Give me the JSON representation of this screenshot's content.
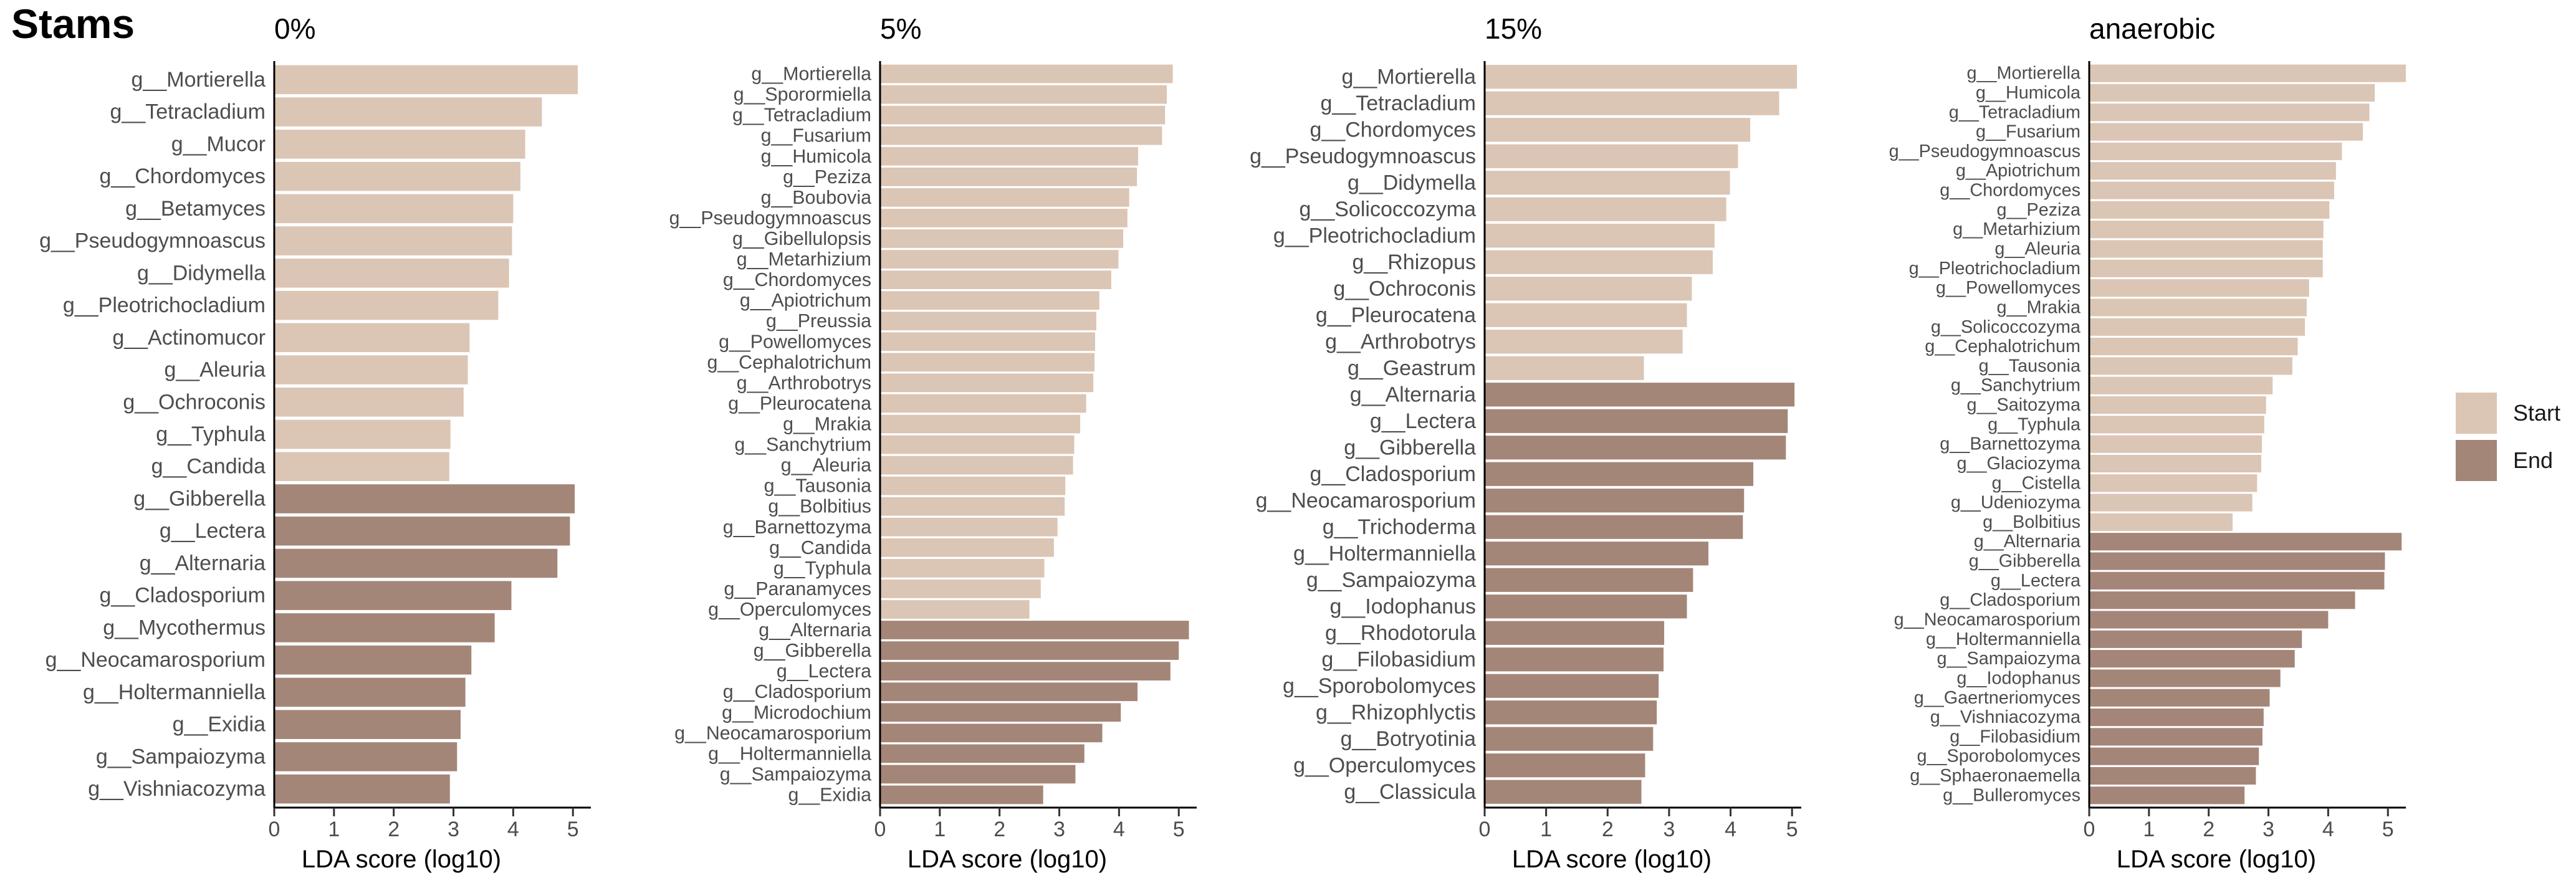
{
  "figure": {
    "title": "Stams",
    "legend": {
      "items": [
        {
          "label": "Start",
          "color": "#dbc5b4"
        },
        {
          "label": "End",
          "color": "#a48678"
        }
      ]
    }
  },
  "chart_data": [
    {
      "type": "bar",
      "orientation": "horizontal",
      "title": "0%",
      "xlabel": "LDA score (log10)",
      "ylabel": "",
      "xlim": [
        0,
        5.3
      ],
      "xticks": [
        0,
        1,
        2,
        3,
        4,
        5
      ],
      "grid": false,
      "legend_position": "right",
      "categories": [
        "g__Mortierella",
        "g__Tetracladium",
        "g__Mucor",
        "g__Chordomyces",
        "g__Betamyces",
        "g__Pseudogymnoascus",
        "g__Didymella",
        "g__Pleotrichocladium",
        "g__Actinomucor",
        "g__Aleuria",
        "g__Ochroconis",
        "g__Typhula",
        "g__Candida",
        "g__Gibberella",
        "g__Lectera",
        "g__Alternaria",
        "g__Cladosporium",
        "g__Mycothermus",
        "g__Neocamarosporium",
        "g__Holtermanniella",
        "g__Exidia",
        "g__Sampaiozyma",
        "g__Vishniacozyma"
      ],
      "values": [
        5.08,
        4.48,
        4.2,
        4.12,
        4.0,
        3.98,
        3.93,
        3.75,
        3.27,
        3.24,
        3.17,
        2.95,
        2.93,
        5.03,
        4.95,
        4.74,
        3.97,
        3.69,
        3.3,
        3.2,
        3.12,
        3.06,
        2.94
      ],
      "groups": [
        "Start",
        "Start",
        "Start",
        "Start",
        "Start",
        "Start",
        "Start",
        "Start",
        "Start",
        "Start",
        "Start",
        "Start",
        "Start",
        "End",
        "End",
        "End",
        "End",
        "End",
        "End",
        "End",
        "End",
        "End",
        "End"
      ]
    },
    {
      "type": "bar",
      "orientation": "horizontal",
      "title": "5%",
      "xlabel": "LDA score (log10)",
      "ylabel": "",
      "xlim": [
        0,
        5.3
      ],
      "xticks": [
        0,
        1,
        2,
        3,
        4,
        5
      ],
      "grid": false,
      "legend_position": "right",
      "categories": [
        "g__Mortierella",
        "g__Sporormiella",
        "g__Tetracladium",
        "g__Fusarium",
        "g__Humicola",
        "g__Peziza",
        "g__Boubovia",
        "g__Pseudogymnoascus",
        "g__Gibellulopsis",
        "g__Metarhizium",
        "g__Chordomyces",
        "g__Apiotrichum",
        "g__Preussia",
        "g__Powellomyces",
        "g__Cephalotrichum",
        "g__Arthrobotrys",
        "g__Pleurocatena",
        "g__Mrakia",
        "g__Sanchytrium",
        "g__Aleuria",
        "g__Tausonia",
        "g__Bolbitius",
        "g__Barnettozyma",
        "g__Candida",
        "g__Typhula",
        "g__Paranamyces",
        "g__Operculomyces",
        "g__Alternaria",
        "g__Gibberella",
        "g__Lectera",
        "g__Cladosporium",
        "g__Microdochium",
        "g__Neocamarosporium",
        "g__Holtermanniella",
        "g__Sampaiozyma",
        "g__Exidia"
      ],
      "values": [
        4.9,
        4.8,
        4.77,
        4.72,
        4.32,
        4.3,
        4.17,
        4.14,
        4.07,
        3.99,
        3.87,
        3.67,
        3.62,
        3.6,
        3.59,
        3.57,
        3.45,
        3.35,
        3.25,
        3.23,
        3.1,
        3.09,
        2.97,
        2.91,
        2.75,
        2.69,
        2.5,
        5.17,
        5.0,
        4.86,
        4.31,
        4.03,
        3.72,
        3.42,
        3.27,
        2.73
      ],
      "groups": [
        "Start",
        "Start",
        "Start",
        "Start",
        "Start",
        "Start",
        "Start",
        "Start",
        "Start",
        "Start",
        "Start",
        "Start",
        "Start",
        "Start",
        "Start",
        "Start",
        "Start",
        "Start",
        "Start",
        "Start",
        "Start",
        "Start",
        "Start",
        "Start",
        "Start",
        "Start",
        "Start",
        "End",
        "End",
        "End",
        "End",
        "End",
        "End",
        "End",
        "End",
        "End"
      ]
    },
    {
      "type": "bar",
      "orientation": "horizontal",
      "title": "15%",
      "xlabel": "LDA score (log10)",
      "ylabel": "",
      "xlim": [
        0,
        5.15
      ],
      "xticks": [
        0,
        1,
        2,
        3,
        4,
        5
      ],
      "grid": false,
      "legend_position": "right",
      "categories": [
        "g__Mortierella",
        "g__Tetracladium",
        "g__Chordomyces",
        "g__Pseudogymnoascus",
        "g__Didymella",
        "g__Solicoccozyma",
        "g__Pleotrichocladium",
        "g__Rhizopus",
        "g__Ochroconis",
        "g__Pleurocatena",
        "g__Arthrobotrys",
        "g__Geastrum",
        "g__Alternaria",
        "g__Lectera",
        "g__Gibberella",
        "g__Cladosporium",
        "g__Neocamarosporium",
        "g__Trichoderma",
        "g__Holtermanniella",
        "g__Sampaiozyma",
        "g__Iodophanus",
        "g__Rhodotorula",
        "g__Filobasidium",
        "g__Sporobolomyces",
        "g__Rhizophlyctis",
        "g__Botryotinia",
        "g__Operculomyces",
        "g__Classicula"
      ],
      "values": [
        5.08,
        4.79,
        4.32,
        4.12,
        3.99,
        3.93,
        3.74,
        3.71,
        3.37,
        3.29,
        3.22,
        2.59,
        5.04,
        4.93,
        4.9,
        4.37,
        4.22,
        4.2,
        3.64,
        3.39,
        3.29,
        2.92,
        2.91,
        2.83,
        2.8,
        2.74,
        2.61,
        2.55
      ],
      "groups": [
        "Start",
        "Start",
        "Start",
        "Start",
        "Start",
        "Start",
        "Start",
        "Start",
        "Start",
        "Start",
        "Start",
        "Start",
        "End",
        "End",
        "End",
        "End",
        "End",
        "End",
        "End",
        "End",
        "End",
        "End",
        "End",
        "End",
        "End",
        "End",
        "End",
        "End"
      ]
    },
    {
      "type": "bar",
      "orientation": "horizontal",
      "title": "anaerobic",
      "xlabel": "LDA score (log10)",
      "ylabel": "",
      "xlim": [
        0,
        5.3
      ],
      "xticks": [
        0,
        1,
        2,
        3,
        4,
        5
      ],
      "grid": false,
      "legend_position": "right",
      "categories": [
        "g__Mortierella",
        "g__Humicola",
        "g__Tetracladium",
        "g__Fusarium",
        "g__Pseudogymnoascus",
        "g__Apiotrichum",
        "g__Chordomyces",
        "g__Peziza",
        "g__Metarhizium",
        "g__Aleuria",
        "g__Pleotrichocladium",
        "g__Powellomyces",
        "g__Mrakia",
        "g__Solicoccozyma",
        "g__Cephalotrichum",
        "g__Tausonia",
        "g__Sanchytrium",
        "g__Saitozyma",
        "g__Typhula",
        "g__Barnettozyma",
        "g__Glaciozyma",
        "g__Cistella",
        "g__Udeniozyma",
        "g__Bolbitius",
        "g__Alternaria",
        "g__Gibberella",
        "g__Lectera",
        "g__Cladosporium",
        "g__Neocamarosporium",
        "g__Holtermanniella",
        "g__Sampaiozyma",
        "g__Iodophanus",
        "g__Gaertneriomyces",
        "g__Vishniacozyma",
        "g__Filobasidium",
        "g__Sporobolomyces",
        "g__Sphaeronaemella",
        "g__Bulleromyces"
      ],
      "values": [
        5.3,
        4.78,
        4.69,
        4.58,
        4.23,
        4.13,
        4.1,
        4.02,
        3.92,
        3.91,
        3.91,
        3.68,
        3.64,
        3.61,
        3.49,
        3.4,
        3.07,
        2.96,
        2.93,
        2.89,
        2.88,
        2.81,
        2.73,
        2.4,
        5.23,
        4.95,
        4.94,
        4.45,
        4.0,
        3.56,
        3.44,
        3.2,
        3.02,
        2.92,
        2.9,
        2.84,
        2.79,
        2.6
      ],
      "groups": [
        "Start",
        "Start",
        "Start",
        "Start",
        "Start",
        "Start",
        "Start",
        "Start",
        "Start",
        "Start",
        "Start",
        "Start",
        "Start",
        "Start",
        "Start",
        "Start",
        "Start",
        "Start",
        "Start",
        "Start",
        "Start",
        "Start",
        "Start",
        "Start",
        "End",
        "End",
        "End",
        "End",
        "End",
        "End",
        "End",
        "End",
        "End",
        "End",
        "End",
        "End",
        "End",
        "End"
      ]
    }
  ]
}
